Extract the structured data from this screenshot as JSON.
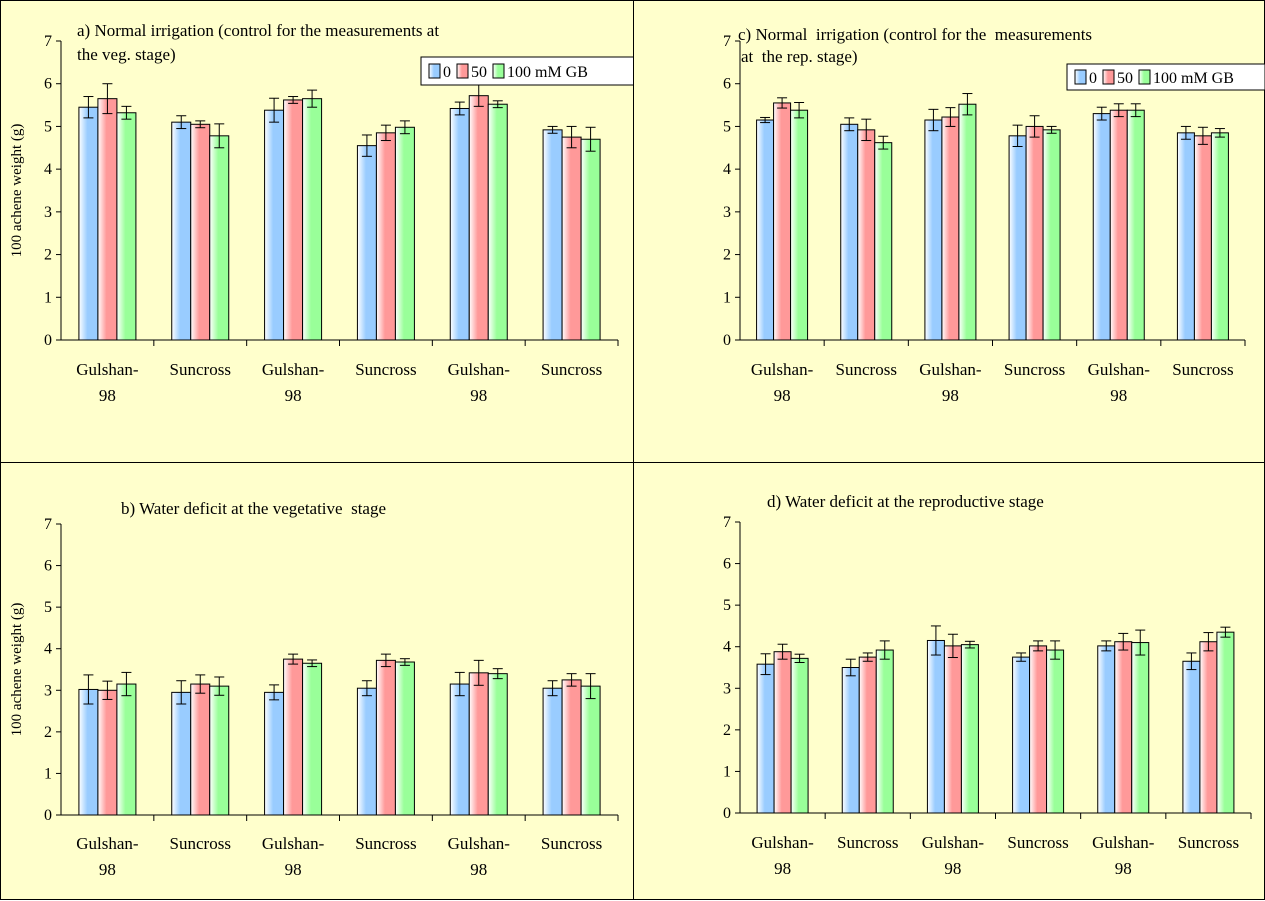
{
  "chart_data": [
    {
      "id": "a",
      "type": "bar",
      "title_lines": [
        "a) Normal irrigation (control for the measurements at",
        "the veg. stage)"
      ],
      "ylabel": "100 achene weight (g)",
      "ylim": [
        0,
        7
      ],
      "yticks": [
        "0",
        "1",
        "2",
        "3",
        "4",
        "5",
        "6",
        "7"
      ],
      "categories": [
        [
          "Gulshan-",
          "98"
        ],
        [
          "Suncross"
        ],
        [
          "Gulshan-",
          "98"
        ],
        [
          "Suncross"
        ],
        [
          "Gulshan-",
          "98"
        ],
        [
          "Suncross"
        ]
      ],
      "legend": {
        "show": true,
        "placement": "top-right"
      },
      "series": [
        {
          "name": "0",
          "values": [
            5.45,
            5.1,
            5.38,
            4.55,
            5.42,
            4.92
          ],
          "errors": [
            0.25,
            0.15,
            0.28,
            0.25,
            0.15,
            0.08
          ]
        },
        {
          "name": "50",
          "values": [
            5.65,
            5.05,
            5.62,
            4.85,
            5.72,
            4.75
          ],
          "errors": [
            0.35,
            0.08,
            0.08,
            0.18,
            0.25,
            0.25
          ]
        },
        {
          "name": "100 mM GB",
          "values": [
            5.32,
            4.78,
            5.65,
            4.98,
            5.52,
            4.7
          ],
          "errors": [
            0.15,
            0.28,
            0.2,
            0.15,
            0.08,
            0.28
          ]
        }
      ]
    },
    {
      "id": "c",
      "type": "bar",
      "title_lines": [
        "c) Normal  irrigation (control for the  measurements",
        "at  the rep. stage)"
      ],
      "ylabel": "",
      "ylim": [
        0,
        7
      ],
      "yticks": [
        "0",
        "1",
        "2",
        "3",
        "4",
        "5",
        "6",
        "7"
      ],
      "categories": [
        [
          "Gulshan-",
          "98"
        ],
        [
          "Suncross"
        ],
        [
          "Gulshan-",
          "98"
        ],
        [
          "Suncross"
        ],
        [
          "Gulshan-",
          "98"
        ],
        [
          "Suncross"
        ]
      ],
      "legend": {
        "show": true,
        "placement": "top-right"
      },
      "series": [
        {
          "name": "0",
          "values": [
            5.15,
            5.05,
            5.15,
            4.78,
            5.3,
            4.85
          ],
          "errors": [
            0.06,
            0.15,
            0.25,
            0.25,
            0.15,
            0.15
          ]
        },
        {
          "name": "50",
          "values": [
            5.55,
            4.92,
            5.22,
            5.0,
            5.38,
            4.78
          ],
          "errors": [
            0.12,
            0.25,
            0.22,
            0.25,
            0.15,
            0.2
          ]
        },
        {
          "name": "100 mM GB",
          "values": [
            5.38,
            4.62,
            5.52,
            4.92,
            5.38,
            4.85
          ],
          "errors": [
            0.18,
            0.15,
            0.25,
            0.08,
            0.15,
            0.1
          ]
        }
      ]
    },
    {
      "id": "b",
      "type": "bar",
      "title_lines": [
        "b) Water deficit at the vegetative  stage"
      ],
      "ylabel": "100 achene weight (g)",
      "ylim": [
        0,
        7
      ],
      "yticks": [
        "0",
        "1",
        "2",
        "3",
        "4",
        "5",
        "6",
        "7"
      ],
      "categories": [
        [
          "Gulshan-",
          "98"
        ],
        [
          "Suncross"
        ],
        [
          "Gulshan-",
          "98"
        ],
        [
          "Suncross"
        ],
        [
          "Gulshan-",
          "98"
        ],
        [
          "Suncross"
        ]
      ],
      "legend": {
        "show": false
      },
      "series": [
        {
          "name": "0",
          "values": [
            3.02,
            2.95,
            2.95,
            3.05,
            3.15,
            3.05
          ],
          "errors": [
            0.35,
            0.28,
            0.18,
            0.18,
            0.28,
            0.18
          ]
        },
        {
          "name": "50",
          "values": [
            3.0,
            3.15,
            3.75,
            3.72,
            3.42,
            3.25
          ],
          "errors": [
            0.22,
            0.22,
            0.12,
            0.15,
            0.3,
            0.15
          ]
        },
        {
          "name": "100 mM GB",
          "values": [
            3.15,
            3.1,
            3.65,
            3.68,
            3.4,
            3.1
          ],
          "errors": [
            0.28,
            0.22,
            0.08,
            0.08,
            0.12,
            0.3
          ]
        }
      ]
    },
    {
      "id": "d",
      "type": "bar",
      "title_lines": [
        "d) Water deficit at the reproductive stage"
      ],
      "ylabel": "",
      "ylim": [
        0,
        7
      ],
      "yticks": [
        "0",
        "1",
        "2",
        "3",
        "4",
        "5",
        "6",
        "7"
      ],
      "categories": [
        [
          "Gulshan-",
          "98"
        ],
        [
          "Suncross"
        ],
        [
          "Gulshan-",
          "98"
        ],
        [
          "Suncross"
        ],
        [
          "Gulshan-",
          "98"
        ],
        [
          "Suncross"
        ]
      ],
      "legend": {
        "show": false
      },
      "series": [
        {
          "name": "0",
          "values": [
            3.58,
            3.5,
            4.15,
            3.75,
            4.02,
            3.65
          ],
          "errors": [
            0.25,
            0.2,
            0.35,
            0.1,
            0.12,
            0.2
          ]
        },
        {
          "name": "50",
          "values": [
            3.88,
            3.75,
            4.02,
            4.02,
            4.12,
            4.12
          ],
          "errors": [
            0.18,
            0.1,
            0.28,
            0.12,
            0.2,
            0.22
          ]
        },
        {
          "name": "100 mM GB",
          "values": [
            3.72,
            3.92,
            4.05,
            3.92,
            4.1,
            4.35
          ],
          "errors": [
            0.1,
            0.22,
            0.08,
            0.22,
            0.3,
            0.12
          ]
        }
      ]
    }
  ],
  "colors": {
    "series": [
      "#99ccff",
      "#ff9999",
      "#99ff99"
    ],
    "background": "#ffffcc"
  }
}
